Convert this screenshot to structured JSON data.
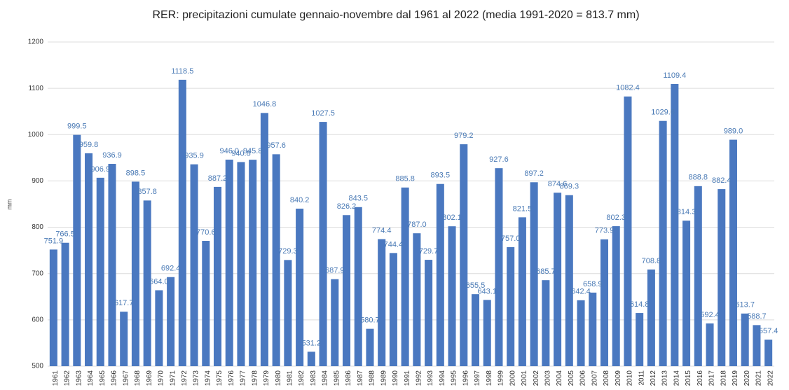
{
  "chart_data": {
    "type": "bar",
    "title": "RER: precipitazioni cumulate gennaio-novembre dal 1961 al 2022    (media 1991-2020 = 813.7 mm)",
    "y_label": "mm",
    "categories": [
      "1961",
      "1962",
      "1963",
      "1964",
      "1965",
      "1966",
      "1967",
      "1968",
      "1969",
      "1970",
      "1971",
      "1972",
      "1973",
      "1974",
      "1975",
      "1976",
      "1977",
      "1978",
      "1979",
      "1980",
      "1981",
      "1982",
      "1983",
      "1984",
      "1985",
      "1986",
      "1987",
      "1988",
      "1989",
      "1990",
      "1991",
      "1992",
      "1993",
      "1994",
      "1995",
      "1996",
      "1997",
      "1998",
      "1999",
      "2000",
      "2001",
      "2002",
      "2003",
      "2004",
      "2005",
      "2006",
      "2007",
      "2008",
      "2009",
      "2010",
      "2011",
      "2012",
      "2013",
      "2014",
      "2015",
      "2016",
      "2017",
      "2018",
      "2019",
      "2020",
      "2021",
      "2022"
    ],
    "values": [
      751.9,
      766.5,
      999.5,
      959.8,
      906.9,
      936.9,
      617.7,
      898.5,
      857.8,
      664.0,
      692.4,
      1118.5,
      935.9,
      770.6,
      887.2,
      946.0,
      940.8,
      945.8,
      1046.8,
      957.6,
      729.3,
      840.2,
      531.2,
      1027.5,
      687.9,
      826.2,
      843.5,
      580.7,
      774.4,
      744.4,
      885.8,
      787.0,
      729.7,
      893.5,
      802.1,
      979.2,
      655.5,
      643.1,
      927.6,
      757.0,
      821.5,
      897.2,
      685.7,
      874.6,
      869.3,
      642.4,
      658.9,
      773.9,
      802.3,
      1082.4,
      614.8,
      708.8,
      1029.6,
      1109.4,
      814.3,
      888.8,
      592.4,
      882.4,
      989.0,
      613.7,
      588.7,
      557.4
    ],
    "value_labels": [
      "751.9",
      "766.5",
      "999.5",
      "959.8",
      "906.9",
      "936.9",
      "617.7",
      "898.5",
      "857.8",
      "664.0",
      "692.4",
      "1118.5",
      "935.9",
      "770.6",
      "887.2",
      "946.0",
      "940.8",
      "945.8",
      "1046.8",
      "957.6",
      "729.3",
      "840.2",
      "531.2",
      "1027.5",
      "687.9",
      "826.2",
      "843.5",
      "580.7",
      "774.4",
      "744.4",
      "885.8",
      "787.0",
      "729.7",
      "893.5",
      "802.1",
      "979.2",
      "655.5",
      "643.1",
      "927.6",
      "757.0",
      "821.5",
      "897.2",
      "685.7",
      "874.6",
      "869.3",
      "642.4",
      "658.9",
      "773.9",
      "802.3",
      "1082.4",
      "614.8",
      "708.8",
      "1029.6",
      "1109.4",
      "814.3",
      "888.8",
      "592.4",
      "882.4",
      "989.0",
      "613.7",
      "588.7",
      "557.4"
    ],
    "color": "#4a78c0",
    "ylim": [
      500,
      1200
    ],
    "yticks": [
      500,
      600,
      700,
      800,
      900,
      1000,
      1100,
      1200
    ],
    "grid": true
  }
}
